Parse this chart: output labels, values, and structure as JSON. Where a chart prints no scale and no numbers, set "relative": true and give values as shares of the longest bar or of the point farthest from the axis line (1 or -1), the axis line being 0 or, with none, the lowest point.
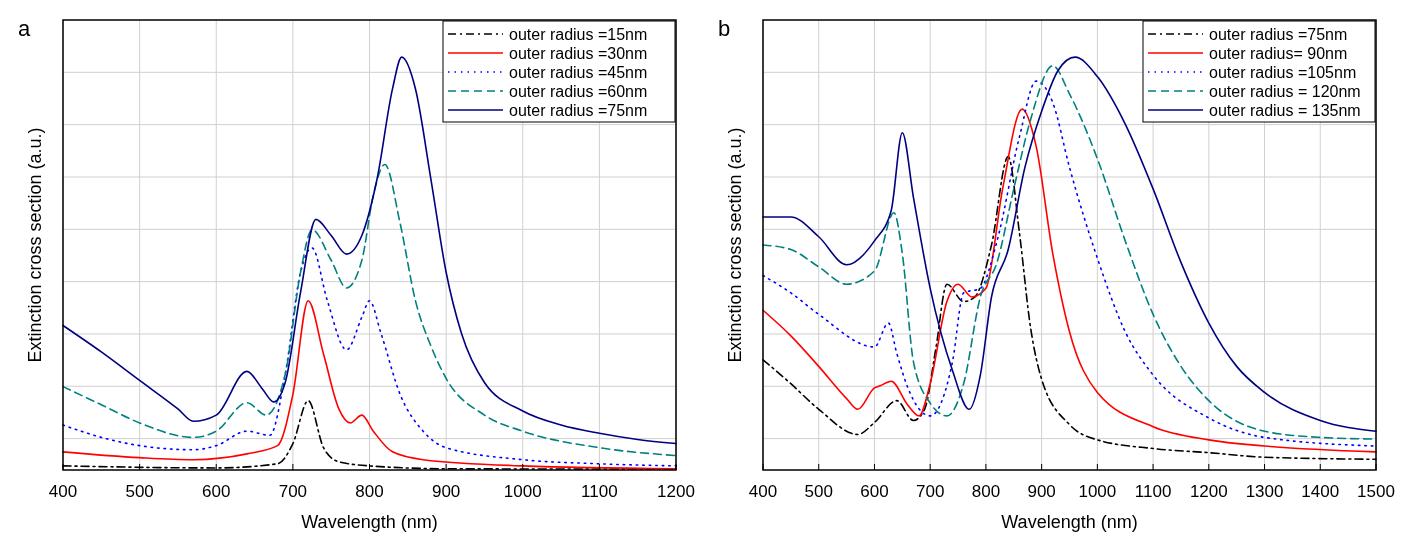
{
  "chart_data": [
    {
      "type": "line",
      "relative": true,
      "annotations": [
        "a"
      ],
      "xlabel": "Wavelength (nm)",
      "ylabel": "Extinction cross section (a.u.)",
      "xlim": [
        400,
        1200
      ],
      "xticks": [
        400,
        500,
        600,
        700,
        800,
        900,
        1000,
        1100,
        1200
      ],
      "grid": true,
      "legend": "top right",
      "marker": "none",
      "series": [
        {
          "name": "outer radius =15nm",
          "color": "#000000",
          "line_style": "dashdot",
          "x": [
            400,
            600,
            680,
            700,
            720,
            740,
            760,
            800,
            900,
            1200
          ],
          "values": [
            0.01,
            0.005,
            0.015,
            0.064,
            0.168,
            0.054,
            0.02,
            0.01,
            0.003,
            0.002
          ]
        },
        {
          "name": "outer radius =30nm",
          "color": "#ff0000",
          "line_style": "solid",
          "x": [
            400,
            500,
            570,
            640,
            680,
            700,
            720,
            740,
            760,
            775,
            790,
            805,
            830,
            870,
            1000,
            1200
          ],
          "values": [
            0.044,
            0.03,
            0.025,
            0.039,
            0.059,
            0.183,
            0.41,
            0.281,
            0.148,
            0.114,
            0.133,
            0.094,
            0.044,
            0.025,
            0.01,
            0.003
          ]
        },
        {
          "name": "outer radius =45nm",
          "color": "#0000ff",
          "line_style": "dotted",
          "x": [
            400,
            450,
            500,
            570,
            600,
            640,
            670,
            690,
            710,
            725,
            745,
            770,
            790,
            800,
            815,
            840,
            870,
            900,
            1000,
            1100,
            1200
          ],
          "values": [
            0.109,
            0.079,
            0.059,
            0.049,
            0.059,
            0.094,
            0.084,
            0.232,
            0.479,
            0.538,
            0.41,
            0.291,
            0.37,
            0.41,
            0.331,
            0.183,
            0.094,
            0.054,
            0.025,
            0.015,
            0.01
          ]
        },
        {
          "name": "outer radius =60nm",
          "color": "#008080",
          "line_style": "dashed",
          "x": [
            400,
            450,
            500,
            570,
            600,
            640,
            665,
            690,
            710,
            725,
            750,
            770,
            790,
            805,
            820,
            840,
            860,
            880,
            900,
            950,
            1000,
            1100,
            1200
          ],
          "values": [
            0.202,
            0.158,
            0.114,
            0.079,
            0.094,
            0.163,
            0.133,
            0.232,
            0.479,
            0.582,
            0.508,
            0.441,
            0.508,
            0.666,
            0.74,
            0.597,
            0.41,
            0.301,
            0.222,
            0.133,
            0.094,
            0.054,
            0.035
          ]
        },
        {
          "name": "outer radius =75nm",
          "color": "#000080",
          "line_style": "solid",
          "x": [
            400,
            450,
            500,
            550,
            570,
            600,
            640,
            660,
            675,
            690,
            710,
            730,
            750,
            770,
            790,
            810,
            830,
            842,
            860,
            880,
            900,
            920,
            950,
            1000,
            1050,
            1100,
            1150,
            1200
          ],
          "values": [
            0.35,
            0.286,
            0.217,
            0.148,
            0.118,
            0.133,
            0.239,
            0.197,
            0.165,
            0.212,
            0.43,
            0.607,
            0.568,
            0.523,
            0.568,
            0.706,
            0.923,
            1.0,
            0.923,
            0.706,
            0.479,
            0.331,
            0.212,
            0.143,
            0.109,
            0.089,
            0.074,
            0.064
          ]
        }
      ]
    },
    {
      "type": "line",
      "relative": true,
      "annotations": [
        "b"
      ],
      "xlabel": "Wavelength (nm)",
      "ylabel": "Extinction cross section (a.u.)",
      "xlim": [
        400,
        1500
      ],
      "xticks": [
        400,
        500,
        600,
        700,
        800,
        900,
        1000,
        1100,
        1200,
        1300,
        1400,
        1500
      ],
      "grid": true,
      "legend": "top right",
      "marker": "none",
      "series": [
        {
          "name": "outer radius =75nm",
          "color": "#000000",
          "line_style": "dashdot",
          "x": [
            400,
            450,
            500,
            570,
            600,
            640,
            670,
            690,
            710,
            730,
            760,
            780,
            810,
            840,
            860,
            880,
            900,
            950,
            1000,
            1100,
            1200,
            1300,
            1500
          ],
          "values": [
            0.267,
            0.209,
            0.147,
            0.086,
            0.115,
            0.168,
            0.12,
            0.147,
            0.293,
            0.45,
            0.408,
            0.419,
            0.545,
            0.759,
            0.576,
            0.346,
            0.22,
            0.11,
            0.073,
            0.052,
            0.042,
            0.031,
            0.026
          ]
        },
        {
          "name": "outer radius= 90nm",
          "color": "#ff0000",
          "line_style": "solid",
          "x": [
            400,
            450,
            500,
            550,
            570,
            600,
            610,
            630,
            660,
            680,
            700,
            730,
            750,
            775,
            800,
            830,
            865,
            890,
            920,
            950,
            1000,
            1100,
            1200,
            1300,
            1500
          ],
          "values": [
            0.387,
            0.325,
            0.251,
            0.173,
            0.147,
            0.199,
            0.204,
            0.215,
            0.157,
            0.131,
            0.209,
            0.408,
            0.45,
            0.419,
            0.44,
            0.681,
            0.874,
            0.785,
            0.524,
            0.335,
            0.188,
            0.105,
            0.073,
            0.058,
            0.044
          ]
        },
        {
          "name": "outer radius =105nm",
          "color": "#0000ff",
          "line_style": "dotted",
          "x": [
            400,
            450,
            500,
            600,
            625,
            640,
            660,
            700,
            740,
            760,
            790,
            820,
            860,
            890,
            920,
            950,
            1000,
            1050,
            1100,
            1200,
            1300,
            1500
          ],
          "values": [
            0.471,
            0.429,
            0.377,
            0.298,
            0.356,
            0.283,
            0.199,
            0.131,
            0.262,
            0.429,
            0.44,
            0.555,
            0.806,
            0.942,
            0.89,
            0.733,
            0.513,
            0.335,
            0.23,
            0.126,
            0.079,
            0.058
          ]
        },
        {
          "name": "outer radius = 120nm",
          "color": "#008080",
          "line_style": "dashed",
          "x": [
            400,
            450,
            500,
            550,
            600,
            635,
            650,
            670,
            700,
            730,
            760,
            790,
            820,
            850,
            880,
            920,
            950,
            1000,
            1050,
            1100,
            1150,
            1200,
            1300,
            1400,
            1500
          ],
          "values": [
            0.545,
            0.534,
            0.492,
            0.45,
            0.482,
            0.623,
            0.524,
            0.262,
            0.162,
            0.131,
            0.209,
            0.419,
            0.503,
            0.681,
            0.848,
            0.979,
            0.911,
            0.754,
            0.555,
            0.377,
            0.251,
            0.168,
            0.094,
            0.079,
            0.075
          ]
        },
        {
          "name": "outer radius = 135nm",
          "color": "#000080",
          "line_style": "solid",
          "x": [
            400,
            450,
            500,
            550,
            600,
            630,
            650,
            670,
            700,
            740,
            770,
            790,
            810,
            840,
            870,
            900,
            930,
            960,
            1000,
            1050,
            1100,
            1150,
            1200,
            1250,
            1300,
            1400,
            1500
          ],
          "values": [
            0.613,
            0.613,
            0.565,
            0.497,
            0.555,
            0.628,
            0.817,
            0.66,
            0.44,
            0.241,
            0.147,
            0.23,
            0.419,
            0.534,
            0.733,
            0.869,
            0.969,
            1.0,
            0.953,
            0.838,
            0.681,
            0.503,
            0.356,
            0.251,
            0.188,
            0.12,
            0.094
          ]
        }
      ]
    }
  ]
}
